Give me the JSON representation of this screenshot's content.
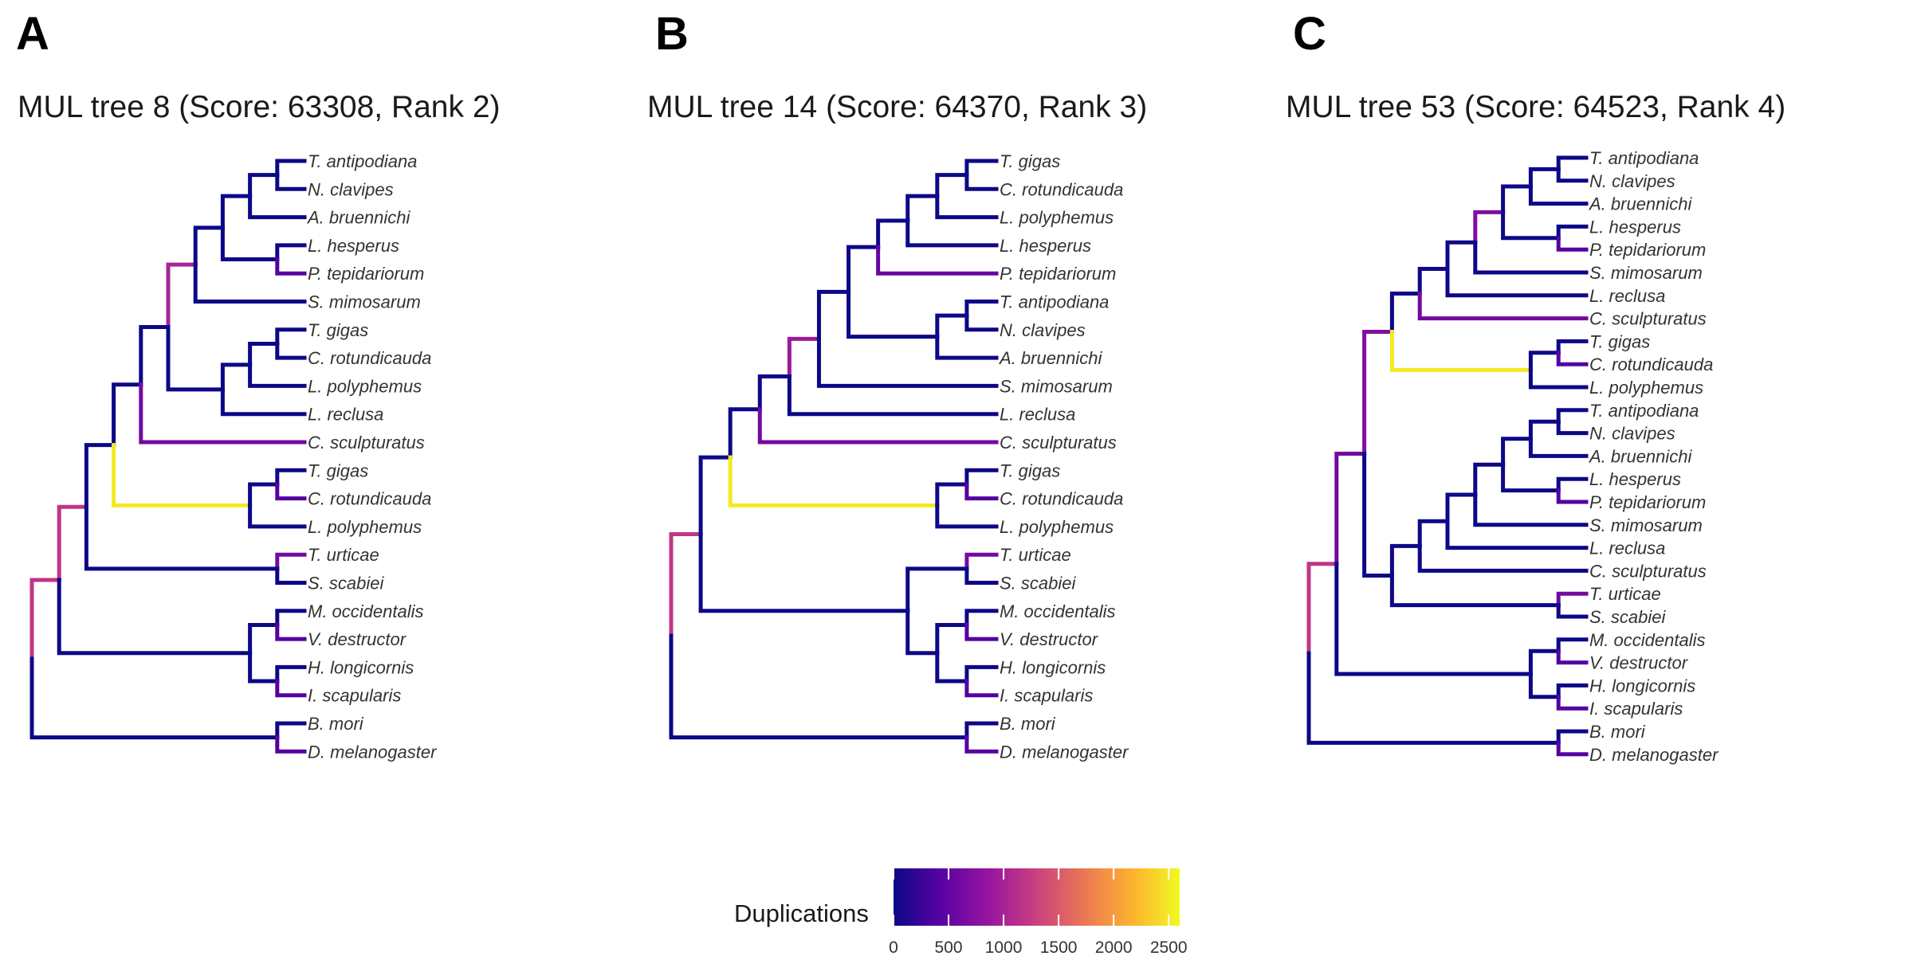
{
  "panels": [
    {
      "letter": "A",
      "title": "MUL tree 8 (Score: 63308, Rank 2)",
      "tree": {
        "children": [
          {
            "children": [
              {
                "children": [
                  {
                    "children": [
                      {
                        "children": [
                          {
                            "children": [
                              {
                                "children": [
                                  {
                                    "children": [
                                      {
                                        "children": [
                                          {
                                            "tip": "T. antipodiana"
                                          },
                                          {
                                            "tip": "N. clavipes"
                                          }
                                        ]
                                      },
                                      {
                                        "tip": "A. bruennichi"
                                      }
                                    ]
                                  },
                                  {
                                    "children": [
                                      {
                                        "tip": "L. hesperus"
                                      },
                                      {
                                        "tip": "P. tepidariorum",
                                        "dup": 400
                                      }
                                    ]
                                  }
                                ]
                              },
                              {
                                "tip": "S. mimosarum"
                              }
                            ],
                            "dup": 1000
                          },
                          {
                            "children": [
                              {
                                "children": [
                                  {
                                    "children": [
                                      {
                                        "tip": "T. gigas"
                                      },
                                      {
                                        "tip": "C. rotundicauda"
                                      }
                                    ]
                                  },
                                  {
                                    "tip": "L. polyphemus"
                                  }
                                ]
                              },
                              {
                                "tip": "L. reclusa"
                              }
                            ]
                          }
                        ]
                      },
                      {
                        "tip": "C. sculpturatus",
                        "dup": 600
                      }
                    ]
                  },
                  {
                    "children": [
                      {
                        "children": [
                          {
                            "tip": "T. gigas"
                          },
                          {
                            "tip": "C. rotundicauda",
                            "dup": 400
                          }
                        ]
                      },
                      {
                        "tip": "L. polyphemus"
                      }
                    ],
                    "dup": 2500
                  }
                ]
              },
              {
                "children": [
                  {
                    "tip": "T. urticae",
                    "dup": 600
                  },
                  {
                    "tip": "S. scabiei"
                  }
                ]
              }
            ],
            "dup": 1200
          },
          {
            "children": [
              {
                "children": [
                  {
                    "tip": "M. occidentalis"
                  },
                  {
                    "tip": "V. destructor",
                    "dup": 400
                  }
                ]
              },
              {
                "children": [
                  {
                    "tip": "H. longicornis"
                  },
                  {
                    "tip": "I. scapularis",
                    "dup": 400
                  }
                ]
              }
            ]
          }
        ],
        "dup_upper": 1200,
        "children_extra": [
          {
            "children": [
              {
                "tip": "B. mori"
              },
              {
                "tip": "D. melanogaster",
                "dup": 400
              }
            ]
          }
        ]
      }
    },
    {
      "letter": "B",
      "title": "MUL tree 14 (Score: 64370, Rank 3)",
      "tree": {
        "children": [
          {
            "children": [
              {
                "children": [
                  {
                    "children": [
                      {
                        "children": [
                          {
                            "children": [
                              {
                                "children": [
                                  {
                                    "children": [
                                      {
                                        "children": [
                                          {
                                            "tip": "T. gigas"
                                          },
                                          {
                                            "tip": "C. rotundicauda"
                                          }
                                        ]
                                      },
                                      {
                                        "tip": "L. polyphemus"
                                      }
                                    ]
                                  },
                                  {
                                    "tip": "L. hesperus"
                                  }
                                ]
                              },
                              {
                                "tip": "P. tepidariorum",
                                "dup": 500
                              }
                            ]
                          },
                          {
                            "children": [
                              {
                                "children": [
                                  {
                                    "tip": "T. antipodiana"
                                  },
                                  {
                                    "tip": "N. clavipes"
                                  }
                                ]
                              },
                              {
                                "tip": "A. bruennichi"
                              }
                            ]
                          }
                        ]
                      },
                      {
                        "tip": "S. mimosarum"
                      }
                    ],
                    "dup": 900
                  },
                  {
                    "tip": "L. reclusa"
                  }
                ]
              },
              {
                "tip": "C. sculpturatus",
                "dup": 600
              }
            ]
          },
          {
            "children": [
              {
                "children": [
                  {
                    "tip": "T. gigas"
                  },
                  {
                    "tip": "C. rotundicauda",
                    "dup": 400
                  }
                ]
              },
              {
                "tip": "L. polyphemus"
              }
            ],
            "dup": 2500
          }
        ],
        "dup_upper": 1200
      }
    },
    {
      "letter": "C",
      "title": "MUL tree 53 (Score: 64523, Rank 4)",
      "tree": {}
    }
  ],
  "legend": {
    "title": "Duplications",
    "ticks": [
      "0",
      "500",
      "1000",
      "1500",
      "2000",
      "2500"
    ],
    "min": 0,
    "max": 2600,
    "colors": [
      "#0d0887",
      "#5b02a3",
      "#9a169f",
      "#c9417e",
      "#ec7853",
      "#fdb42f",
      "#f0f921"
    ]
  }
}
